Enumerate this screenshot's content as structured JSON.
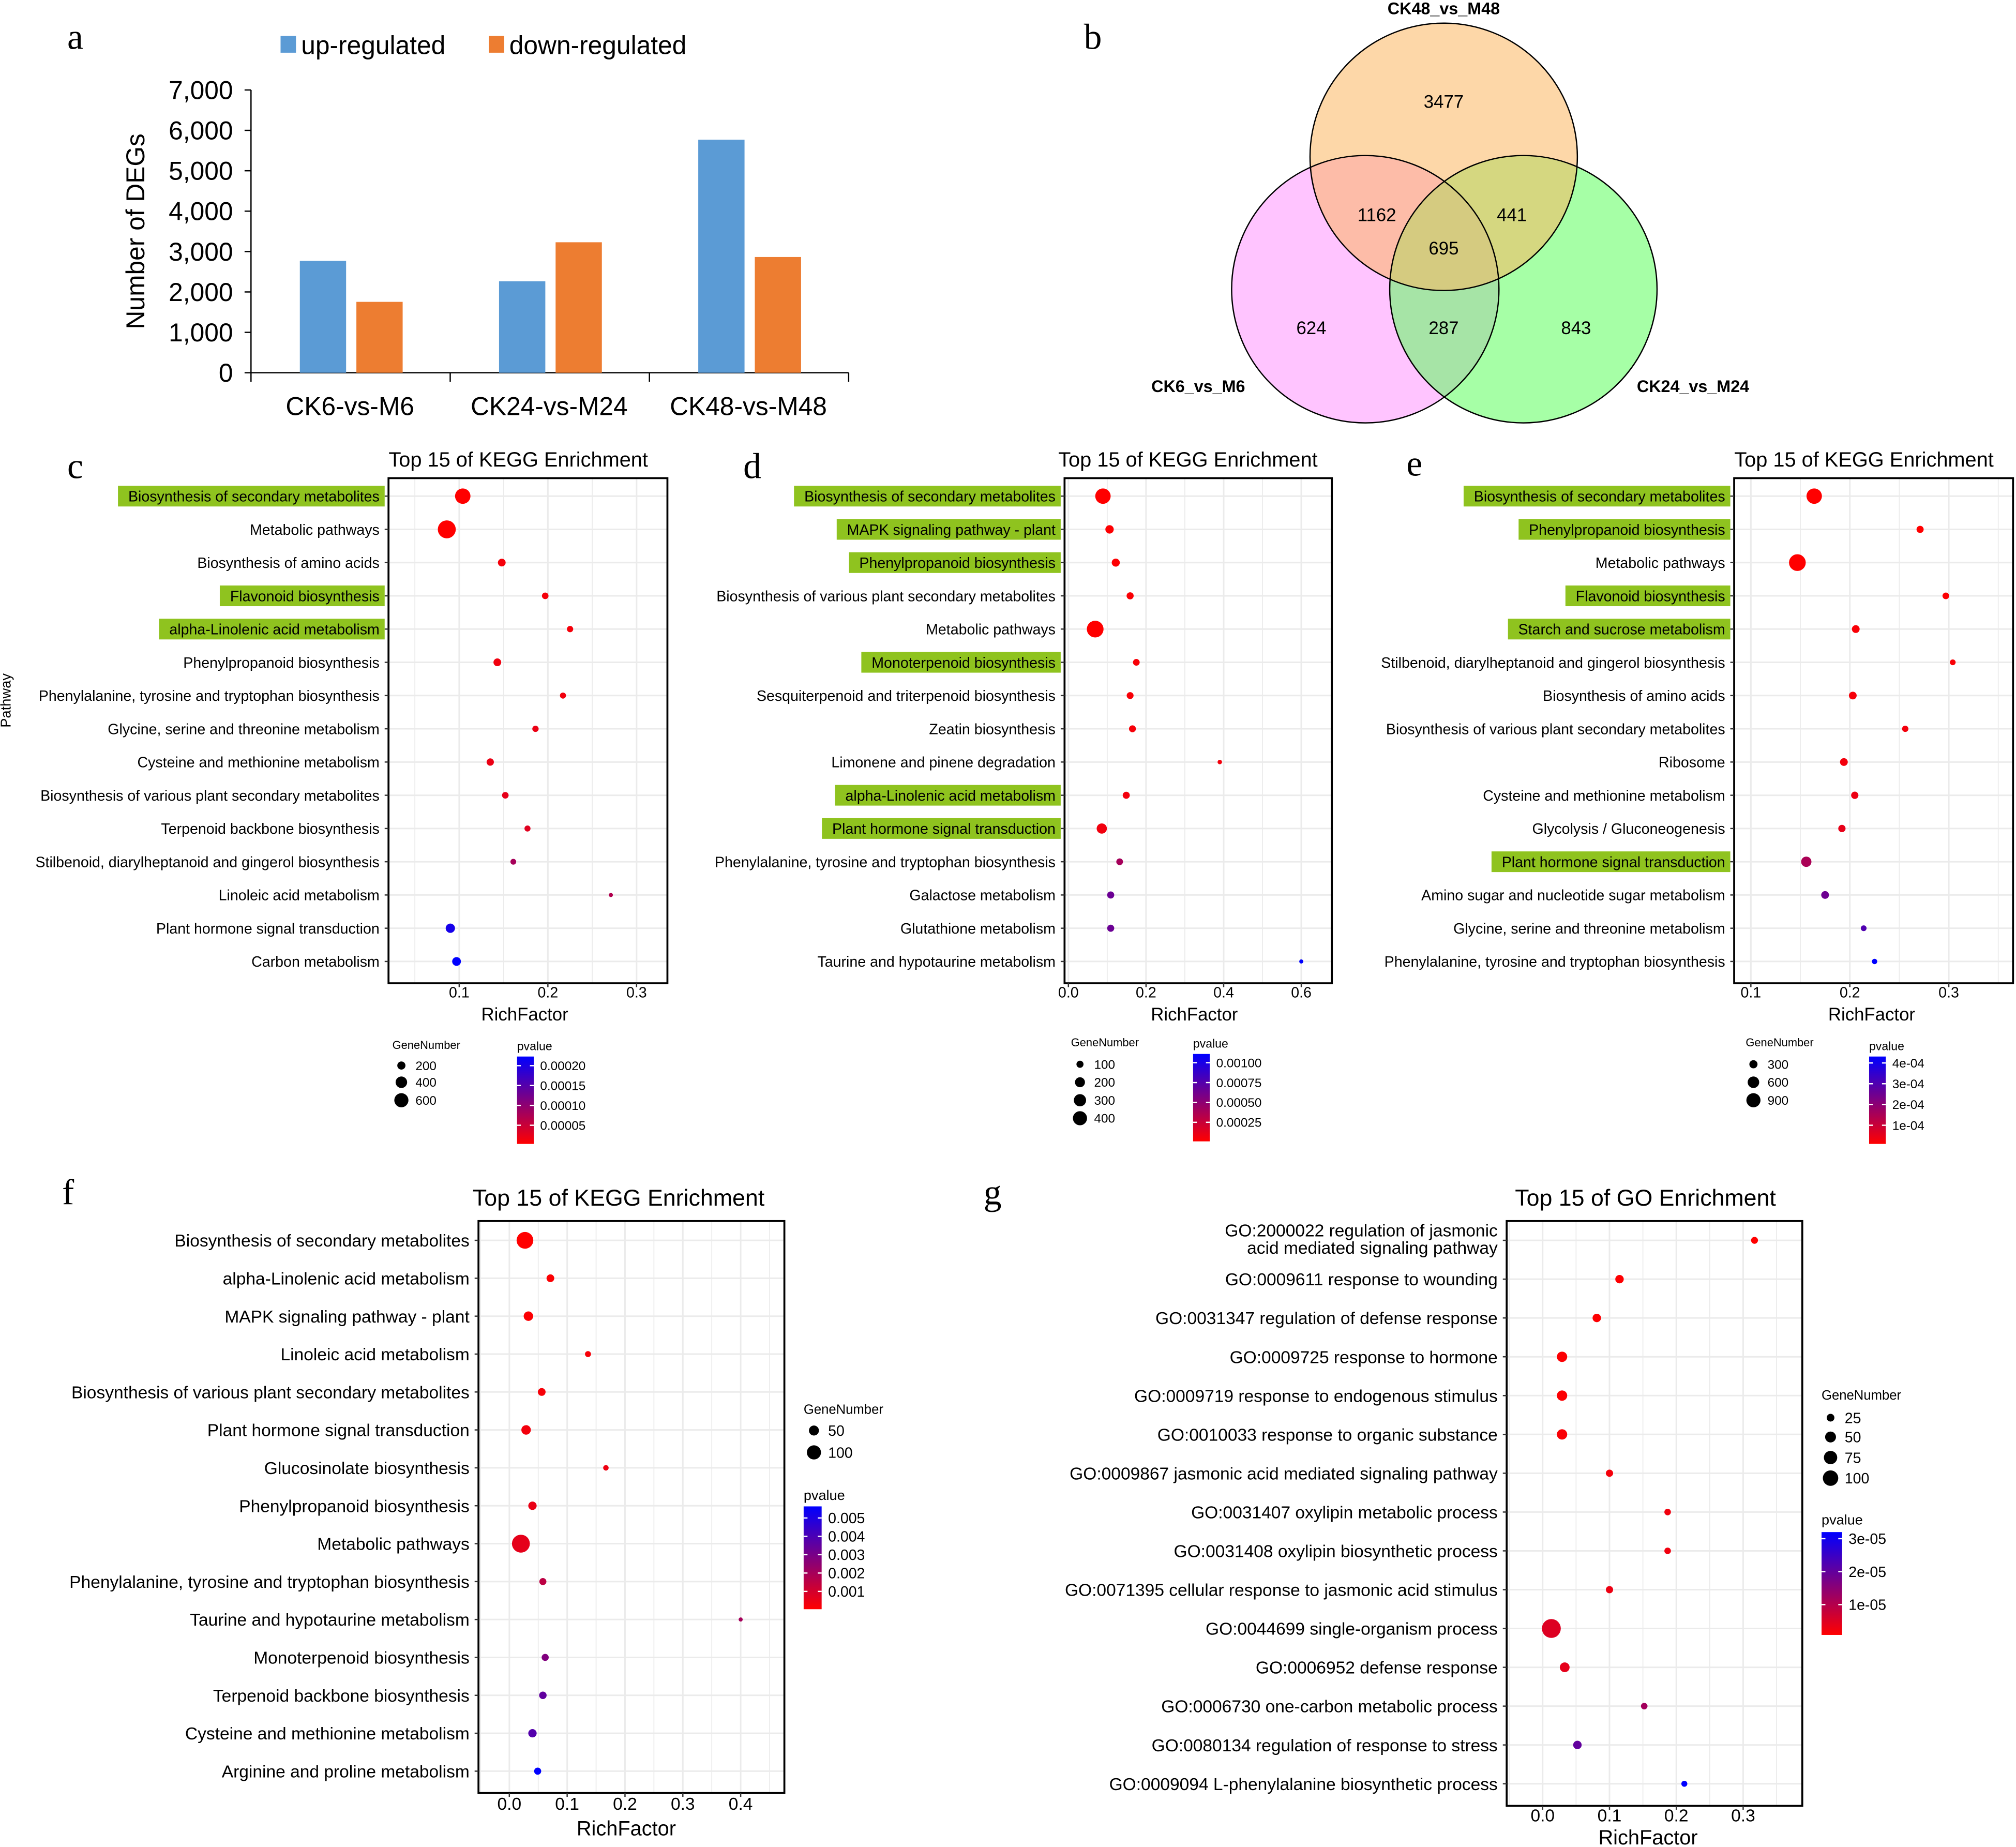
{
  "panels": {
    "a": "a",
    "b": "b",
    "c": "c",
    "d": "d",
    "e": "e",
    "f": "f",
    "g": "g"
  },
  "colors": {
    "up": "#5b9bd5",
    "down": "#ed7d31",
    "highlight": "#8fc31f",
    "p_low": "#ff0000",
    "p_high": "#0000ff"
  },
  "chart_data": [
    {
      "panel": "a",
      "type": "bar",
      "categories": [
        "CK6-vs-M6",
        "CK24-vs-M24",
        "CK48-vs-M48"
      ],
      "series": [
        {
          "name": "up-regulated",
          "values": [
            2770,
            2265,
            5770
          ]
        },
        {
          "name": "down-regulated",
          "values": [
            1755,
            3230,
            2865
          ]
        }
      ],
      "xlabel": "",
      "ylabel": "Number of DEGs",
      "ylim": [
        0,
        7000
      ],
      "yticks": [
        "0",
        "1,000",
        "2,000",
        "3,000",
        "4,000",
        "5,000",
        "6,000",
        "7,000"
      ],
      "legend": "top"
    },
    {
      "panel": "b",
      "type": "venn",
      "sets": [
        "CK48_vs_M48",
        "CK6_vs_M6",
        "CK24_vs_M24"
      ],
      "regions": {
        "CK48_only": "3477",
        "CK48_CK6": "1162",
        "CK48_CK24": "441",
        "all_three": "695",
        "CK6_only": "624",
        "CK6_CK24": "287",
        "CK24_only": "843"
      }
    },
    {
      "panel": "c",
      "type": "scatter",
      "title": "Top 15 of KEGG Enrichment",
      "xlabel": "RichFactor",
      "ylabel": "Pathway",
      "xticks": [
        "0.1",
        "0.2",
        "0.3"
      ],
      "size_legend": {
        "title": "GeneNumber",
        "values": [
          "200",
          "400",
          "600"
        ]
      },
      "color_legend": {
        "title": "pvalue",
        "ticks": [
          "0.00020",
          "0.00015",
          "0.00010",
          "0.00005"
        ]
      },
      "points": [
        {
          "pathway": "Biosynthesis of secondary metabolites",
          "rich_factor": 0.104,
          "gene_number": 714,
          "pvalue": 3e-06,
          "highlighted": true
        },
        {
          "pathway": "Metabolic pathways",
          "rich_factor": 0.086,
          "gene_number": 970,
          "pvalue": 3e-06,
          "highlighted": false
        },
        {
          "pathway": "Biosynthesis of amino acids",
          "rich_factor": 0.148,
          "gene_number": 180,
          "pvalue": 1.2e-05,
          "highlighted": false
        },
        {
          "pathway": "Flavonoid biosynthesis",
          "rich_factor": 0.197,
          "gene_number": 130,
          "pvalue": 1.2e-05,
          "highlighted": true
        },
        {
          "pathway": "alpha-Linolenic acid metabolism",
          "rich_factor": 0.225,
          "gene_number": 120,
          "pvalue": 1.2e-05,
          "highlighted": true
        },
        {
          "pathway": "Phenylpropanoid biosynthesis",
          "rich_factor": 0.143,
          "gene_number": 180,
          "pvalue": 1.5e-05,
          "highlighted": false
        },
        {
          "pathway": "Phenylalanine, tyrosine and tryptophan biosynthesis",
          "rich_factor": 0.217,
          "gene_number": 110,
          "pvalue": 1.5e-05,
          "highlighted": false
        },
        {
          "pathway": "Glycine, serine and threonine metabolism",
          "rich_factor": 0.186,
          "gene_number": 120,
          "pvalue": 2e-05,
          "highlighted": false
        },
        {
          "pathway": "Cysteine and methionine metabolism",
          "rich_factor": 0.135,
          "gene_number": 160,
          "pvalue": 2e-05,
          "highlighted": false
        },
        {
          "pathway": "Biosynthesis of various plant secondary metabolites",
          "rich_factor": 0.152,
          "gene_number": 130,
          "pvalue": 2.5e-05,
          "highlighted": false
        },
        {
          "pathway": "Terpenoid backbone biosynthesis",
          "rich_factor": 0.177,
          "gene_number": 110,
          "pvalue": 3e-05,
          "highlighted": false
        },
        {
          "pathway": "Stilbenoid, diarylheptanoid and gingerol biosynthesis",
          "rich_factor": 0.161,
          "gene_number": 100,
          "pvalue": 8e-05,
          "highlighted": false
        },
        {
          "pathway": "Linoleic acid metabolism",
          "rich_factor": 0.271,
          "gene_number": 45,
          "pvalue": 7e-05,
          "highlighted": false
        },
        {
          "pathway": "Plant hormone signal transduction",
          "rich_factor": 0.09,
          "gene_number": 260,
          "pvalue": 0.000205,
          "highlighted": false
        },
        {
          "pathway": "Carbon metabolism",
          "rich_factor": 0.097,
          "gene_number": 230,
          "pvalue": 0.000223,
          "highlighted": false
        }
      ]
    },
    {
      "panel": "d",
      "type": "scatter",
      "title": "Top 15 of KEGG Enrichment",
      "xlabel": "RichFactor",
      "xticks": [
        "0.0",
        "0.2",
        "0.4",
        "0.6"
      ],
      "size_legend": {
        "title": "GeneNumber",
        "values": [
          "100",
          "200",
          "300",
          "400"
        ]
      },
      "color_legend": {
        "title": "pvalue",
        "ticks": [
          "0.00100",
          "0.00075",
          "0.00050",
          "0.00025"
        ]
      },
      "points": [
        {
          "pathway": "Biosynthesis of secondary metabolites",
          "rich_factor": 0.089,
          "gene_number": 475,
          "pvalue": 1e-05,
          "highlighted": true
        },
        {
          "pathway": "MAPK signaling pathway - plant",
          "rich_factor": 0.106,
          "gene_number": 140,
          "pvalue": 2e-05,
          "highlighted": true
        },
        {
          "pathway": "Phenylpropanoid biosynthesis",
          "rich_factor": 0.122,
          "gene_number": 130,
          "pvalue": 2e-05,
          "highlighted": true
        },
        {
          "pathway": "Biosynthesis of various plant secondary metabolites",
          "rich_factor": 0.159,
          "gene_number": 100,
          "pvalue": 3e-05,
          "highlighted": false
        },
        {
          "pathway": "Metabolic pathways",
          "rich_factor": 0.069,
          "gene_number": 560,
          "pvalue": 1e-05,
          "highlighted": false
        },
        {
          "pathway": "Monoterpenoid biosynthesis",
          "rich_factor": 0.175,
          "gene_number": 90,
          "pvalue": 4e-05,
          "highlighted": true
        },
        {
          "pathway": "Sesquiterpenoid and triterpenoid biosynthesis",
          "rich_factor": 0.159,
          "gene_number": 95,
          "pvalue": 4e-05,
          "highlighted": false
        },
        {
          "pathway": "Zeatin biosynthesis",
          "rich_factor": 0.165,
          "gene_number": 95,
          "pvalue": 5e-05,
          "highlighted": false
        },
        {
          "pathway": "Limonene and pinene degradation",
          "rich_factor": 0.39,
          "gene_number": 40,
          "pvalue": 6e-05,
          "highlighted": false
        },
        {
          "pathway": "alpha-Linolenic acid metabolism",
          "rich_factor": 0.149,
          "gene_number": 100,
          "pvalue": 6e-05,
          "highlighted": true
        },
        {
          "pathway": "Plant hormone signal transduction",
          "rich_factor": 0.086,
          "gene_number": 210,
          "pvalue": 7e-05,
          "highlighted": true
        },
        {
          "pathway": "Phenylalanine, tyrosine and tryptophan biosynthesis",
          "rich_factor": 0.132,
          "gene_number": 90,
          "pvalue": 0.0004,
          "highlighted": false
        },
        {
          "pathway": "Galactose metabolism",
          "rich_factor": 0.109,
          "gene_number": 100,
          "pvalue": 0.00065,
          "highlighted": false
        },
        {
          "pathway": "Glutathione metabolism",
          "rich_factor": 0.109,
          "gene_number": 100,
          "pvalue": 0.00065,
          "highlighted": false
        },
        {
          "pathway": "Taurine and hypotaurine metabolism",
          "rich_factor": 0.6,
          "gene_number": 30,
          "pvalue": 0.00111,
          "highlighted": false
        }
      ]
    },
    {
      "panel": "e",
      "type": "scatter",
      "title": "Top 15 of KEGG Enrichment",
      "xlabel": "RichFactor",
      "xticks": [
        "0.1",
        "0.2",
        "0.3"
      ],
      "size_legend": {
        "title": "GeneNumber",
        "values": [
          "300",
          "600",
          "900"
        ]
      },
      "color_legend": {
        "title": "pvalue",
        "ticks": [
          "4e-04",
          "3e-04",
          "2e-04",
          "1e-04"
        ]
      },
      "points": [
        {
          "pathway": "Biosynthesis of secondary metabolites",
          "rich_factor": 0.164,
          "gene_number": 1070,
          "pvalue": 1e-05,
          "highlighted": true
        },
        {
          "pathway": "Phenylpropanoid biosynthesis",
          "rich_factor": 0.271,
          "gene_number": 230,
          "pvalue": 1e-05,
          "highlighted": true
        },
        {
          "pathway": "Metabolic pathways",
          "rich_factor": 0.147,
          "gene_number": 1260,
          "pvalue": 1e-05,
          "highlighted": false
        },
        {
          "pathway": "Flavonoid biosynthesis",
          "rich_factor": 0.297,
          "gene_number": 200,
          "pvalue": 1.5e-05,
          "highlighted": true
        },
        {
          "pathway": "Starch and sucrose metabolism",
          "rich_factor": 0.206,
          "gene_number": 270,
          "pvalue": 2e-05,
          "highlighted": true
        },
        {
          "pathway": "Stilbenoid, diarylheptanoid and gingerol biosynthesis",
          "rich_factor": 0.304,
          "gene_number": 150,
          "pvalue": 2e-05,
          "highlighted": false
        },
        {
          "pathway": "Biosynthesis of amino acids",
          "rich_factor": 0.203,
          "gene_number": 270,
          "pvalue": 2.5e-05,
          "highlighted": false
        },
        {
          "pathway": "Biosynthesis of various plant secondary metabolites",
          "rich_factor": 0.256,
          "gene_number": 180,
          "pvalue": 3e-05,
          "highlighted": false
        },
        {
          "pathway": "Ribosome",
          "rich_factor": 0.194,
          "gene_number": 270,
          "pvalue": 3e-05,
          "highlighted": false
        },
        {
          "pathway": "Cysteine and methionine metabolism",
          "rich_factor": 0.205,
          "gene_number": 240,
          "pvalue": 4e-05,
          "highlighted": false
        },
        {
          "pathway": "Glycolysis / Gluconeogenesis",
          "rich_factor": 0.192,
          "gene_number": 240,
          "pvalue": 5e-05,
          "highlighted": false
        },
        {
          "pathway": "Plant hormone signal transduction",
          "rich_factor": 0.156,
          "gene_number": 480,
          "pvalue": 0.00015,
          "highlighted": true
        },
        {
          "pathway": "Amino sugar and nucleotide sugar metabolism",
          "rich_factor": 0.175,
          "gene_number": 270,
          "pvalue": 0.00025,
          "highlighted": false
        },
        {
          "pathway": "Glycine, serine and threonine metabolism",
          "rich_factor": 0.214,
          "gene_number": 150,
          "pvalue": 0.0003,
          "highlighted": false
        },
        {
          "pathway": "Phenylalanine, tyrosine and tryptophan biosynthesis",
          "rich_factor": 0.225,
          "gene_number": 130,
          "pvalue": 0.000431,
          "highlighted": false
        }
      ]
    },
    {
      "panel": "f",
      "type": "scatter",
      "title": "Top 15 of KEGG Enrichment",
      "xlabel": "RichFactor",
      "xticks": [
        "0.0",
        "0.1",
        "0.2",
        "0.3",
        "0.4"
      ],
      "size_legend": {
        "title": "GeneNumber",
        "values": [
          "50",
          "100"
        ]
      },
      "color_legend": {
        "title": "pvalue",
        "ticks": [
          "0.005",
          "0.004",
          "0.003",
          "0.002",
          "0.001"
        ]
      },
      "points": [
        {
          "pathway": "Biosynthesis of secondary metabolites",
          "rich_factor": 0.027,
          "gene_number": 140,
          "pvalue": 3e-05
        },
        {
          "pathway": "alpha-Linolenic acid metabolism",
          "rich_factor": 0.071,
          "gene_number": 30,
          "pvalue": 0.0001
        },
        {
          "pathway": "MAPK signaling pathway - plant",
          "rich_factor": 0.033,
          "gene_number": 45,
          "pvalue": 0.0001
        },
        {
          "pathway": "Linoleic acid metabolism",
          "rich_factor": 0.136,
          "gene_number": 18,
          "pvalue": 0.0002
        },
        {
          "pathway": "Biosynthesis of various plant secondary metabolites",
          "rich_factor": 0.056,
          "gene_number": 30,
          "pvalue": 0.0002
        },
        {
          "pathway": "Plant hormone signal transduction",
          "rich_factor": 0.029,
          "gene_number": 45,
          "pvalue": 0.0003
        },
        {
          "pathway": "Glucosinolate biosynthesis",
          "rich_factor": 0.167,
          "gene_number": 15,
          "pvalue": 0.0004
        },
        {
          "pathway": "Phenylpropanoid biosynthesis",
          "rich_factor": 0.04,
          "gene_number": 35,
          "pvalue": 0.0005
        },
        {
          "pathway": "Metabolic pathways",
          "rich_factor": 0.02,
          "gene_number": 160,
          "pvalue": 0.0006
        },
        {
          "pathway": "Phenylalanine, tyrosine and tryptophan biosynthesis",
          "rich_factor": 0.058,
          "gene_number": 25,
          "pvalue": 0.0015
        },
        {
          "pathway": "Taurine and hypotaurine metabolism",
          "rich_factor": 0.4,
          "gene_number": 8,
          "pvalue": 0.002
        },
        {
          "pathway": "Monoterpenoid biosynthesis",
          "rich_factor": 0.062,
          "gene_number": 25,
          "pvalue": 0.0028
        },
        {
          "pathway": "Terpenoid backbone biosynthesis",
          "rich_factor": 0.058,
          "gene_number": 28,
          "pvalue": 0.0035
        },
        {
          "pathway": "Cysteine and methionine metabolism",
          "rich_factor": 0.04,
          "gene_number": 35,
          "pvalue": 0.0038
        },
        {
          "pathway": "Arginine and proline metabolism",
          "rich_factor": 0.049,
          "gene_number": 25,
          "pvalue": 0.00563
        }
      ]
    },
    {
      "panel": "g",
      "type": "scatter",
      "title": "Top 15 of GO Enrichment",
      "xlabel": "RichFactor",
      "xticks": [
        "0.0",
        "0.1",
        "0.2",
        "0.3"
      ],
      "size_legend": {
        "title": "GeneNumber",
        "values": [
          "25",
          "50",
          "75",
          "100"
        ]
      },
      "color_legend": {
        "title": "pvalue",
        "ticks": [
          "3e-05",
          "2e-05",
          "1e-05"
        ]
      },
      "points": [
        {
          "pathway": "GO:2000022 regulation of jasmonic\nacid mediated signaling pathway",
          "rich_factor": 0.317,
          "gene_number": 20,
          "pvalue": 8e-07
        },
        {
          "pathway": "GO:0009611 response to wounding",
          "rich_factor": 0.115,
          "gene_number": 30,
          "pvalue": 1e-06
        },
        {
          "pathway": "GO:0031347 regulation of defense response",
          "rich_factor": 0.081,
          "gene_number": 30,
          "pvalue": 1e-06
        },
        {
          "pathway": "GO:0009725 response to hormone",
          "rich_factor": 0.029,
          "gene_number": 45,
          "pvalue": 1.2e-06
        },
        {
          "pathway": "GO:0009719 response to endogenous stimulus",
          "rich_factor": 0.029,
          "gene_number": 45,
          "pvalue": 1.2e-06
        },
        {
          "pathway": "GO:0010033 response to organic substance",
          "rich_factor": 0.029,
          "gene_number": 45,
          "pvalue": 1.5e-06
        },
        {
          "pathway": "GO:0009867 jasmonic acid mediated signaling pathway",
          "rich_factor": 0.1,
          "gene_number": 22,
          "pvalue": 2e-06
        },
        {
          "pathway": "GO:0031407 oxylipin metabolic process",
          "rich_factor": 0.187,
          "gene_number": 18,
          "pvalue": 2.5e-06
        },
        {
          "pathway": "GO:0031408 oxylipin biosynthetic process",
          "rich_factor": 0.187,
          "gene_number": 18,
          "pvalue": 2.5e-06
        },
        {
          "pathway": "GO:0071395 cellular response to jasmonic acid stimulus",
          "rich_factor": 0.1,
          "gene_number": 22,
          "pvalue": 3e-06
        },
        {
          "pathway": "GO:0044699 single-organism process",
          "rich_factor": 0.013,
          "gene_number": 150,
          "pvalue": 5e-06
        },
        {
          "pathway": "GO:0006952 defense response",
          "rich_factor": 0.033,
          "gene_number": 40,
          "pvalue": 4e-06
        },
        {
          "pathway": "GO:0006730 one-carbon metabolic process",
          "rich_factor": 0.152,
          "gene_number": 18,
          "pvalue": 1.2e-05
        },
        {
          "pathway": "GO:0080134 regulation of response to stress",
          "rich_factor": 0.052,
          "gene_number": 30,
          "pvalue": 2e-05
        },
        {
          "pathway": "GO:0009094 L-phenylalanine biosynthetic process",
          "rich_factor": 0.212,
          "gene_number": 15,
          "pvalue": 3.2e-05
        }
      ]
    }
  ]
}
